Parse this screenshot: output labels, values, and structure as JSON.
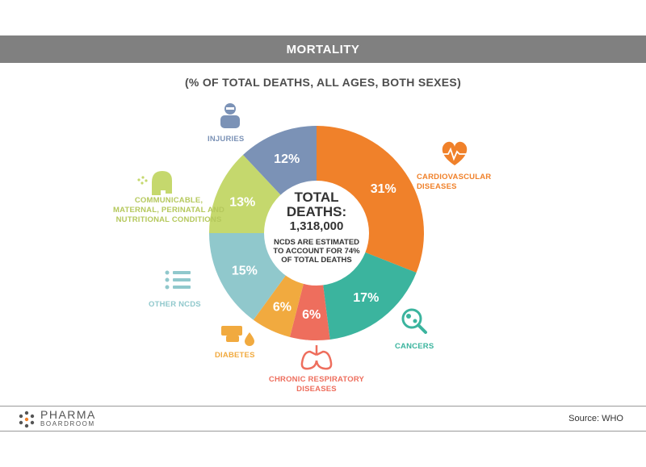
{
  "header": {
    "title": "MORTALITY",
    "subtitle": "(% OF TOTAL DEATHS, ALL AGES, BOTH SEXES)"
  },
  "center": {
    "line1": "TOTAL",
    "line2": "DEATHS:",
    "total": "1,318,000",
    "note": "NCDS ARE ESTIMATED TO ACCOUNT FOR 74% OF TOTAL DEATHS"
  },
  "chart_data": {
    "type": "pie",
    "donut": true,
    "slices": [
      {
        "label": "CARDIOVASCULAR DISEASES",
        "value": 31,
        "display": "31%",
        "color": "#f0812a",
        "icon": "heart-pulse-icon"
      },
      {
        "label": "CANCERS",
        "value": 17,
        "display": "17%",
        "color": "#3bb49e",
        "icon": "microscope-cells-icon"
      },
      {
        "label": "CHRONIC RESPIRATORY DISEASES",
        "value": 6,
        "display": "6%",
        "color": "#ee6e5d",
        "icon": "lungs-icon"
      },
      {
        "label": "DIABETES",
        "value": 6,
        "display": "6%",
        "color": "#f1aa3f",
        "icon": "finger-blood-drop-icon"
      },
      {
        "label": "OTHER NCDS",
        "value": 15,
        "display": "15%",
        "color": "#90c8cc",
        "icon": "list-icon"
      },
      {
        "label": "COMMUNICABLE, MATERNAL, PERINATAL AND NUTRITIONAL CONDITIONS",
        "value": 13,
        "display": "13%",
        "color": "#c5d86d",
        "icon": "coughing-head-icon"
      },
      {
        "label": "INJURIES",
        "value": 12,
        "display": "12%",
        "color": "#7b92b6",
        "icon": "injured-person-icon"
      }
    ]
  },
  "labels": {
    "cardio": "CARDIOVASCULAR\nDISEASES",
    "cancers": "CANCERS",
    "respiratory": "CHRONIC RESPIRATORY\nDISEASES",
    "diabetes": "DIABETES",
    "other": "OTHER NCDS",
    "communicable": "COMMUNICABLE,\nMATERNAL, PERINATAL AND\nNUTRITIONAL CONDITIONS",
    "injuries": "INJURIES"
  },
  "footer": {
    "logo_line1": "PHARMA",
    "logo_line2": "BOARDROOM",
    "source": "Source: WHO"
  }
}
